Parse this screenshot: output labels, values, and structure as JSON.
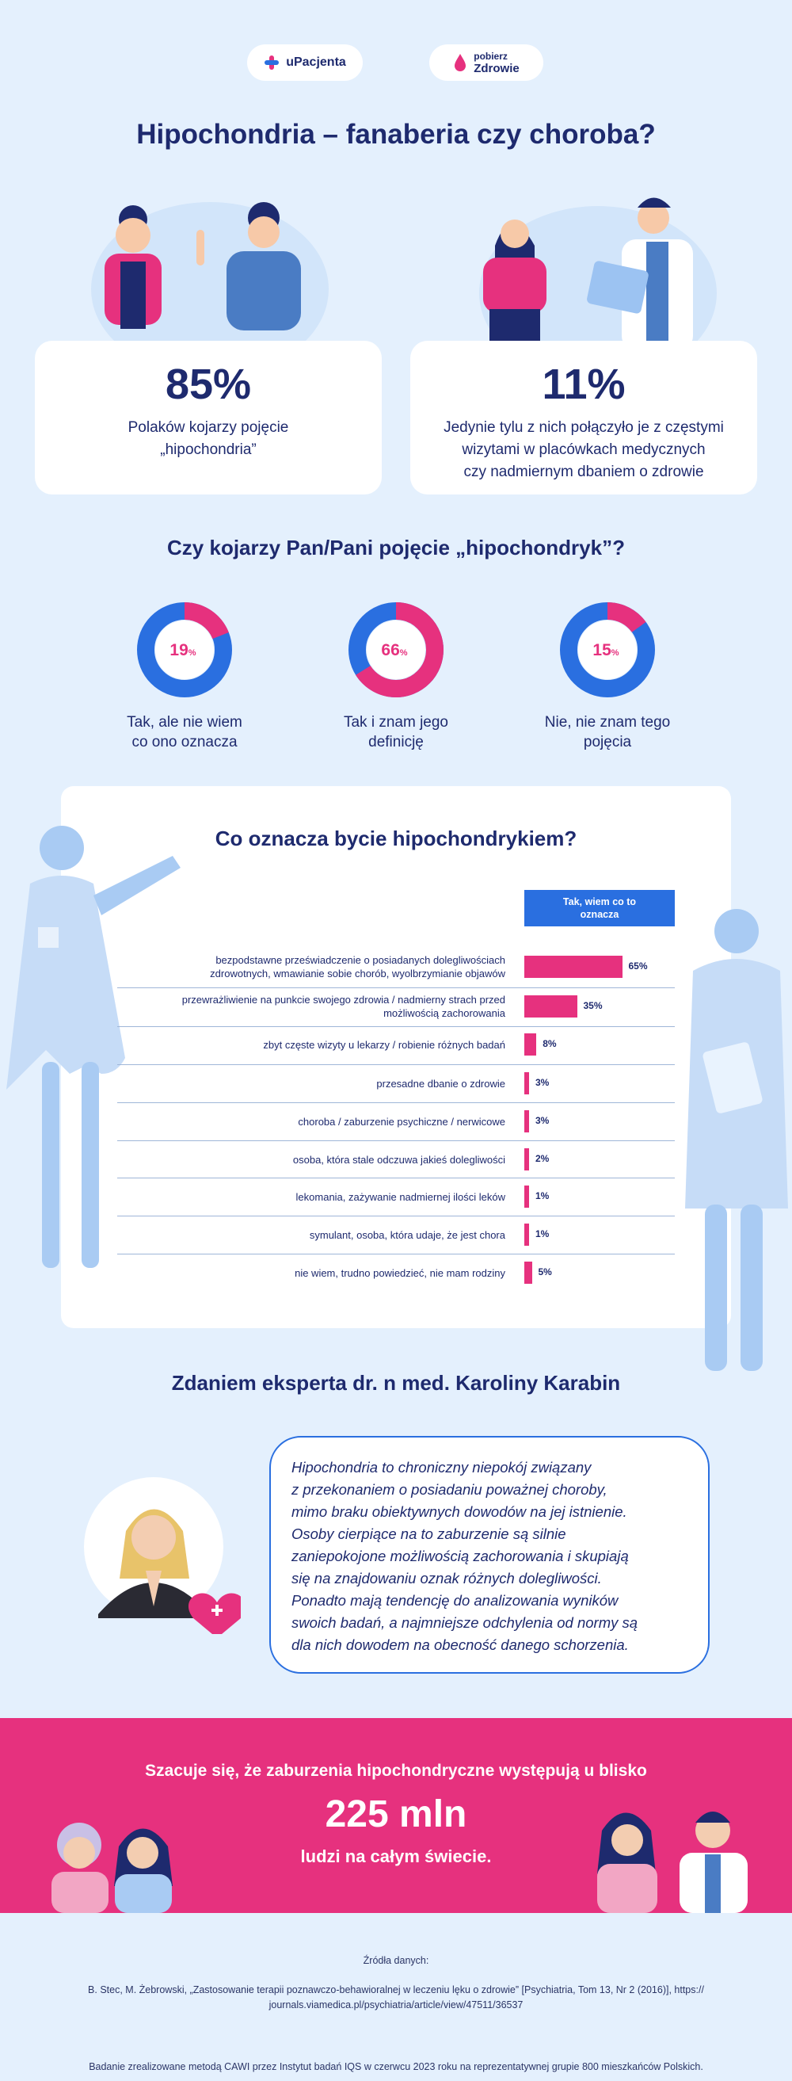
{
  "logos": {
    "upacjenta": "uPacjenta",
    "pobierz_line1": "pobierz",
    "pobierz_line2": "Zdrowie"
  },
  "title": "Hipochondria – fanaberia czy choroba?",
  "stats": [
    {
      "value": "85%",
      "text_line1": "Polaków kojarzy pojęcie",
      "text_line2": "„hipochondria”"
    },
    {
      "value": "11%",
      "text_line1": "Jedynie tylu z nich połączyło je z częstymi",
      "text_line2": "wizytami w placówkach medycznych",
      "text_line3": "czy nadmiernym dbaniem o zdrowie"
    }
  ],
  "donuts_heading": "Czy kojarzy Pan/Pani pojęcie „hipochondryk”?",
  "donuts": [
    {
      "value": 19,
      "value_text": "19",
      "label_line1": "Tak, ale nie wiem",
      "label_line2": "co ono oznacza"
    },
    {
      "value": 66,
      "value_text": "66",
      "label_line1": "Tak i znam jego",
      "label_line2": "definicję"
    },
    {
      "value": 15,
      "value_text": "15",
      "label_line1": "Nie, nie znam tego",
      "label_line2": "pojęcia"
    }
  ],
  "chart_heading": "Co oznacza bycie hipochondrykiem?",
  "chart_data": {
    "type": "bar",
    "orientation": "horizontal",
    "series_name_line1": "Tak, wiem co to",
    "series_name_line2": "oznacza",
    "categories": [
      [
        "bezpodstawne przeświadczenie o posiadanych dolegliwościach",
        "zdrowotnych, wmawianie sobie chorób, wyolbrzymianie objawów"
      ],
      [
        "przewrażliwienie na punkcie swojego zdrowia / nadmierny strach przed",
        "możliwością zachorowania"
      ],
      [
        "zbyt częste wizyty u lekarzy / robienie różnych badań"
      ],
      [
        "przesadne dbanie o zdrowie"
      ],
      [
        "choroba / zaburzenie psychiczne / nerwicowe"
      ],
      [
        "osoba, która stale odczuwa jakieś dolegliwości"
      ],
      [
        "lekomania, zażywanie nadmiernej ilości leków"
      ],
      [
        "symulant, osoba, która udaje, że jest chora"
      ],
      [
        "nie wiem, trudno powiedzieć, nie mam rodziny"
      ]
    ],
    "values": [
      65,
      35,
      8,
      3,
      3,
      2,
      1,
      1,
      5
    ],
    "value_labels": [
      "65%",
      "35%",
      "8%",
      "3%",
      "3%",
      "2%",
      "1%",
      "1%",
      "5%"
    ],
    "max": 100
  },
  "expert": {
    "heading": "Zdaniem eksperta dr. n med. Karoliny Karabin",
    "quote_lines": [
      "Hipochondria to chroniczny niepokój związany",
      "z przekonaniem o posiadaniu poważnej choroby,",
      "mimo braku obiektywnych dowodów na jej istnienie.",
      "Osoby cierpiące na to zaburzenie są silnie",
      "zaniepokojone możliwością zachorowania i skupiają",
      "się na znajdowaniu oznak różnych dolegliwości.",
      "Ponadto mają tendencję do analizowania wyników",
      "swoich badań, a najmniejsze odchylenia od normy są",
      "dla nich dowodem na obecność danego schorzenia."
    ]
  },
  "estimate": {
    "line1": "Szacuje się, że zaburzenia hipochondryczne występują u blisko",
    "big": "225 mln",
    "line2": "ludzi na całym świecie."
  },
  "footer": {
    "sources_label": "Źródła danych:",
    "source_line1": "B. Stec, M. Żebrowski, „Zastosowanie terapii poznawczo-behawioralnej w leczeniu lęku o zdrowie” [Psychiatria, Tom 13, Nr 2 (2016)], https://",
    "source_line2": "journals.viamedica.pl/psychiatria/article/view/47511/36537",
    "study": "Badanie zrealizowane metodą CAWI przez Instytut badań IQS w czerwcu 2023 roku na reprezentatywnej grupie 800 mieszkańców Polskich."
  },
  "colors": {
    "navy": "#1e2a6e",
    "pink": "#e6317e",
    "blue": "#2a6fe0",
    "light_bg": "#e4f0fd",
    "figure_blue": "#b9d6f7"
  }
}
